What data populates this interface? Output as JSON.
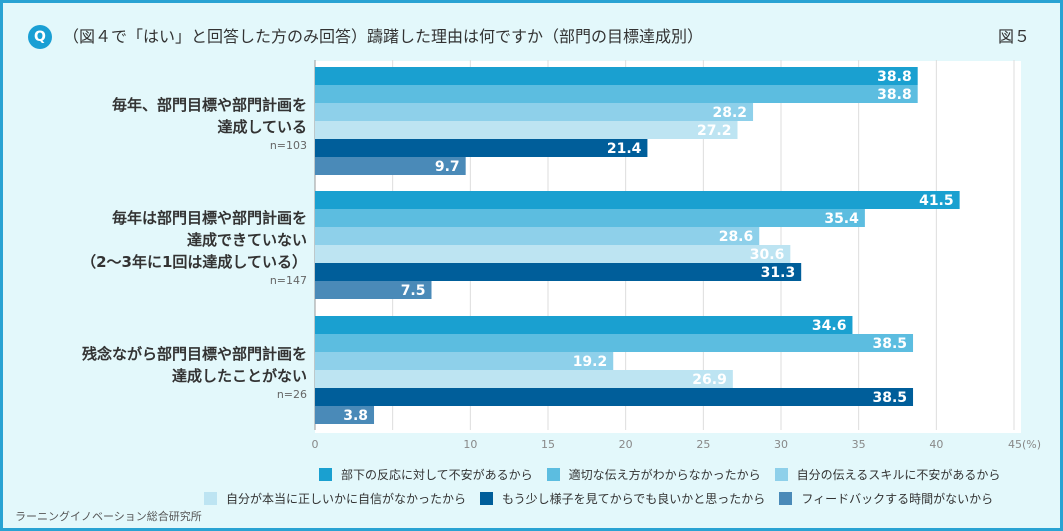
{
  "header": {
    "q_icon": "Q",
    "title": "（図４で「はい」と回答した方のみ回答）躊躇した理由は何ですか（部門の目標達成別）",
    "figure_label": "図５"
  },
  "footer": "ラーニングイノベーション総合研究所",
  "chart_data": {
    "type": "bar",
    "orientation": "horizontal",
    "categories": [
      {
        "label": "毎年、部門目標や部門計画を\n達成している",
        "n": "n=103"
      },
      {
        "label": "毎年は部門目標や部門計画を\n達成できていない\n（2～3年に1回は達成している）",
        "n": "n=147"
      },
      {
        "label": "残念ながら部門目標や部門計画を\n達成したことがない",
        "n": "n=26"
      }
    ],
    "series": [
      {
        "name": "部下の反応に対して不安があるから",
        "color": "#1aa0d0",
        "values": [
          38.8,
          41.5,
          34.6
        ]
      },
      {
        "name": "適切な伝え方がわからなかったから",
        "color": "#5cbde0",
        "values": [
          38.8,
          35.4,
          38.5
        ]
      },
      {
        "name": "自分の伝えるスキルに不安があるから",
        "color": "#8ed0ea",
        "values": [
          28.2,
          28.6,
          19.2
        ]
      },
      {
        "name": "自分が本当に正しいかに自信がなかったから",
        "color": "#bde4f2",
        "values": [
          27.2,
          30.6,
          26.9
        ]
      },
      {
        "name": "もう少し様子を見てからでも良いかと思ったから",
        "color": "#005e9a",
        "values": [
          21.4,
          31.3,
          38.5
        ]
      },
      {
        "name": "フィードバックする時間がないから",
        "color": "#4a8ab8",
        "values": [
          9.7,
          7.5,
          3.8
        ]
      }
    ],
    "xlim": [
      0,
      45
    ],
    "xticks": [
      0,
      10,
      15,
      20,
      25,
      30,
      35,
      40,
      45
    ],
    "xtick_labels": [
      "0",
      "10",
      "15",
      "20",
      "25",
      "30",
      "35",
      "40",
      "45(%)"
    ],
    "gridlines_every": 5,
    "grid": true,
    "legend_position": "bottom"
  }
}
